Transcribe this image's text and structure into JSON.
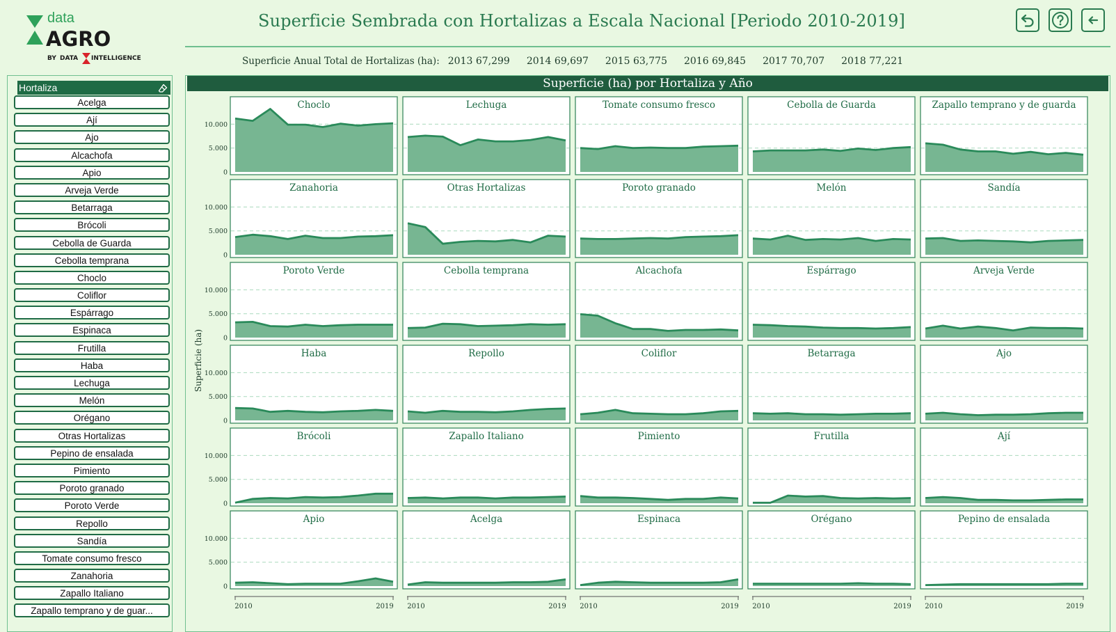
{
  "logo": {
    "top_text": "data",
    "main_text": "AGRO",
    "byline_prefix": "BY",
    "byline_a": "DATA",
    "byline_b": "INTELLIGENCE"
  },
  "header": {
    "title": "Superficie Sembrada con Hortalizas a Escala Nacional [Periodo 2010-2019]",
    "buttons": [
      {
        "name": "undo-icon"
      },
      {
        "name": "help-icon"
      },
      {
        "name": "back-arrow-icon"
      }
    ]
  },
  "totals": {
    "label": "Superficie Anual Total de Hortalizas (ha):",
    "items": [
      "2013 67,299",
      "2014 69,697",
      "2015 63,775",
      "2016 69,845",
      "2017 70,707",
      "2018 77,221"
    ]
  },
  "sidebar": {
    "title": "Hortaliza",
    "items": [
      "Acelga",
      "Ají",
      "Ajo",
      "Alcachofa",
      "Apio",
      "Arveja Verde",
      "Betarraga",
      "Brócoli",
      "Cebolla de Guarda",
      "Cebolla temprana",
      "Choclo",
      "Coliflor",
      "Espárrago",
      "Espinaca",
      "Frutilla",
      "Haba",
      "Lechuga",
      "Melón",
      "Orégano",
      "Otras Hortalizas",
      "Pepino de ensalada",
      "Pimiento",
      "Poroto granado",
      "Poroto Verde",
      "Repollo",
      "Sandía",
      "Tomate consumo fresco",
      "Zanahoria",
      "Zapallo Italiano",
      "Zapallo temprano y de guar..."
    ]
  },
  "colors": {
    "fill": "#77b692",
    "line": "#2a8a5a",
    "grid": "#a9d9bd",
    "frame": "#3c8a60",
    "panel_bg": "#ffffff"
  },
  "panel": {
    "title": "Superficie (ha) por Hortaliza y Año"
  },
  "chart_data": {
    "type": "area",
    "title": "Superficie (ha) por Hortaliza y Año",
    "ylabel": "Superficie (ha)",
    "x": [
      2010,
      2011,
      2012,
      2013,
      2014,
      2015,
      2016,
      2017,
      2018,
      2019
    ],
    "x_tick_labels": [
      "2010",
      "2019"
    ],
    "ylim": [
      0,
      14000
    ],
    "y_ticks": [
      0,
      5000,
      10000
    ],
    "y_tick_labels": [
      "0",
      "5.000",
      "10.000"
    ],
    "grid": true,
    "series": [
      {
        "name": "Choclo",
        "values": [
          11200,
          10700,
          13200,
          9900,
          9900,
          9400,
          10100,
          9700,
          10000,
          10200
        ]
      },
      {
        "name": "Lechuga",
        "values": [
          7300,
          7600,
          7400,
          5600,
          6800,
          6400,
          6400,
          6700,
          7300,
          6600
        ]
      },
      {
        "name": "Tomate consumo fresco",
        "values": [
          5000,
          4800,
          5400,
          5000,
          5100,
          5000,
          5000,
          5300,
          5400,
          5500
        ]
      },
      {
        "name": "Cebolla de Guarda",
        "values": [
          4300,
          4500,
          4500,
          4500,
          4700,
          4400,
          4900,
          4600,
          5000,
          5200
        ]
      },
      {
        "name": "Zapallo temprano y de guarda",
        "values": [
          6000,
          5700,
          4700,
          4300,
          4300,
          3800,
          4200,
          3700,
          4000,
          3600
        ]
      },
      {
        "name": "Zanahoria",
        "values": [
          3700,
          4200,
          3900,
          3300,
          4000,
          3500,
          3500,
          3800,
          3900,
          4100
        ]
      },
      {
        "name": "Otras Hortalizas",
        "values": [
          6600,
          5800,
          2300,
          2700,
          2900,
          2800,
          3100,
          2600,
          4000,
          3800
        ]
      },
      {
        "name": "Poroto granado",
        "values": [
          3400,
          3300,
          3300,
          3400,
          3500,
          3400,
          3700,
          3800,
          3900,
          4100
        ]
      },
      {
        "name": "Melón",
        "values": [
          3400,
          3200,
          4000,
          3100,
          3300,
          3200,
          3500,
          2900,
          3300,
          3200
        ]
      },
      {
        "name": "Sandía",
        "values": [
          3400,
          3500,
          2900,
          3000,
          2900,
          2800,
          2600,
          2900,
          3000,
          3100
        ]
      },
      {
        "name": "Poroto Verde",
        "values": [
          3200,
          3300,
          2400,
          2300,
          2700,
          2400,
          2600,
          2700,
          2700,
          2700
        ]
      },
      {
        "name": "Cebolla temprana",
        "values": [
          2000,
          2100,
          2900,
          2800,
          2400,
          2500,
          2600,
          2800,
          2700,
          2800
        ]
      },
      {
        "name": "Alcachofa",
        "values": [
          4900,
          4600,
          3000,
          1800,
          1800,
          1400,
          1600,
          1600,
          1700,
          1500
        ]
      },
      {
        "name": "Espárrago",
        "values": [
          2700,
          2600,
          2400,
          2300,
          2100,
          2000,
          2000,
          1900,
          2000,
          2200
        ]
      },
      {
        "name": "Arveja Verde",
        "values": [
          1900,
          2500,
          1900,
          2300,
          2000,
          1500,
          2100,
          2000,
          2000,
          1900
        ]
      },
      {
        "name": "Haba",
        "values": [
          2600,
          2500,
          1800,
          2000,
          1800,
          1700,
          1900,
          2000,
          2200,
          2000
        ]
      },
      {
        "name": "Repollo",
        "values": [
          1900,
          1600,
          2000,
          1800,
          1800,
          1700,
          1900,
          2200,
          2400,
          2500
        ]
      },
      {
        "name": "Coliflor",
        "values": [
          1300,
          1600,
          2200,
          1500,
          1400,
          1300,
          1300,
          1500,
          1900,
          2000
        ]
      },
      {
        "name": "Betarraga",
        "values": [
          1500,
          1400,
          1500,
          1300,
          1300,
          1200,
          1300,
          1400,
          1400,
          1500
        ]
      },
      {
        "name": "Ajo",
        "values": [
          1400,
          1600,
          1300,
          1100,
          1200,
          1200,
          1300,
          1500,
          1600,
          1600
        ]
      },
      {
        "name": "Brócoli",
        "values": [
          100,
          900,
          1100,
          1000,
          1300,
          1200,
          1300,
          1600,
          2000,
          2000
        ]
      },
      {
        "name": "Zapallo Italiano",
        "values": [
          1100,
          1200,
          1000,
          1200,
          1200,
          1000,
          1200,
          1200,
          1300,
          1400
        ]
      },
      {
        "name": "Pimiento",
        "values": [
          1500,
          1200,
          1200,
          1100,
          900,
          700,
          900,
          900,
          1200,
          1000
        ]
      },
      {
        "name": "Frutilla",
        "values": [
          100,
          100,
          1600,
          1400,
          1500,
          1100,
          1000,
          1100,
          1000,
          1100
        ]
      },
      {
        "name": "Ají",
        "values": [
          1100,
          1300,
          1100,
          700,
          700,
          600,
          600,
          700,
          800,
          800
        ]
      },
      {
        "name": "Apio",
        "values": [
          700,
          800,
          600,
          400,
          500,
          500,
          500,
          1000,
          1600,
          900
        ]
      },
      {
        "name": "Acelga",
        "values": [
          300,
          800,
          700,
          700,
          700,
          700,
          800,
          800,
          900,
          1400
        ]
      },
      {
        "name": "Espinaca",
        "values": [
          200,
          700,
          900,
          800,
          700,
          700,
          700,
          700,
          800,
          1400
        ]
      },
      {
        "name": "Orégano",
        "values": [
          500,
          500,
          500,
          500,
          500,
          500,
          600,
          500,
          500,
          400
        ]
      },
      {
        "name": "Pepino de ensalada",
        "values": [
          200,
          300,
          400,
          400,
          400,
          400,
          400,
          400,
          500,
          500
        ]
      }
    ]
  }
}
